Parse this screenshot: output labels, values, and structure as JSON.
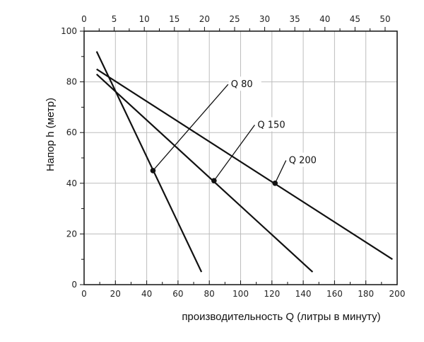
{
  "chart_data": {
    "type": "line",
    "title": "",
    "xlabel": "производительность Q (литры в минуту)",
    "ylabel": "Напор h (метр)",
    "xlim": [
      0,
      200
    ],
    "ylim": [
      0,
      100
    ],
    "x2lim": [
      0,
      52
    ],
    "x_ticks": [
      0,
      20,
      40,
      60,
      80,
      100,
      120,
      140,
      160,
      180,
      200
    ],
    "x2_ticks": [
      0,
      5,
      10,
      15,
      20,
      25,
      30,
      35,
      40,
      45,
      50
    ],
    "y_ticks": [
      0,
      20,
      40,
      60,
      80,
      100
    ],
    "grid": true,
    "series": [
      {
        "name": "Q 80",
        "x": [
          8,
          75
        ],
        "y": [
          92,
          5
        ],
        "marker": [
          44,
          45
        ]
      },
      {
        "name": "Q 150",
        "x": [
          8,
          146
        ],
        "y": [
          83,
          5
        ],
        "marker": [
          83,
          41
        ]
      },
      {
        "name": "Q 200",
        "x": [
          8,
          197
        ],
        "y": [
          85,
          10
        ],
        "marker": [
          122,
          40
        ]
      }
    ],
    "annotations": [
      {
        "text": "Q 80",
        "from": [
          44,
          45
        ],
        "to": [
          92,
          79
        ]
      },
      {
        "text": "Q 150",
        "from": [
          83,
          41
        ],
        "to": [
          109,
          63
        ]
      },
      {
        "text": "Q 200",
        "from": [
          122,
          40
        ],
        "to": [
          129,
          49
        ]
      }
    ]
  }
}
